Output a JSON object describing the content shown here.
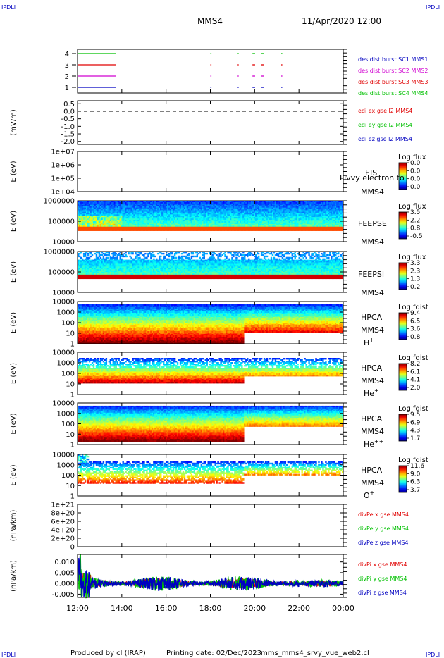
{
  "corner_label": "IPDLI",
  "header": {
    "title": "MMS4",
    "datetime": "11/Apr/2020 12:00"
  },
  "footer": {
    "produced": "Produced by cl (IRAP)",
    "printing": "Printing date: 02/Dec/2023",
    "file": "mms_mms4_srvy_vue_web2.cl"
  },
  "colors": {
    "red": "#e00000",
    "green": "#00c000",
    "blue": "#0000c0",
    "magenta": "#d000d0",
    "black": "#000000"
  },
  "chart_data": [
    {
      "type": "line",
      "id": "burst",
      "yticks": [
        "1",
        "2",
        "3",
        "4"
      ],
      "series": [
        {
          "name": "des dist burst SC1 MMS1",
          "color": "#0000c0"
        },
        {
          "name": "des dist burst SC2 MMS2",
          "color": "#d000d0"
        },
        {
          "name": "des dist burst SC3 MMS3",
          "color": "#e00000"
        },
        {
          "name": "des dist burst SC4 MMS4",
          "color": "#00c000"
        }
      ],
      "segments_hours": [
        [
          12.0,
          13.75
        ],
        [
          18.0,
          18.05
        ],
        [
          19.2,
          19.28
        ],
        [
          19.9,
          20.02
        ],
        [
          20.3,
          20.42
        ],
        [
          21.2,
          21.25
        ]
      ]
    },
    {
      "type": "line",
      "id": "edi",
      "ylabel": "(mV/m)",
      "yticks": [
        "0.5",
        "0.0",
        "-0.5",
        "-1.0",
        "-1.5",
        "-2.0"
      ],
      "ylim": [
        -2.2,
        0.7
      ],
      "series": [
        {
          "name": "edi ex gse l2 MMS4",
          "color": "#e00000"
        },
        {
          "name": "edi ey gse l2 MMS4",
          "color": "#00c000"
        },
        {
          "name": "edi ez gse l2 MMS4",
          "color": "#0000c0"
        }
      ]
    },
    {
      "type": "heatmap",
      "id": "eis",
      "ylabel": "E (eV)",
      "yticks": [
        "1e+07",
        "1e+06",
        "1e+05",
        "1e+04"
      ],
      "instrument": "EIS",
      "spacecraft": "MMS4",
      "note": "Livvy electron to",
      "colorbar_title": "Log flux",
      "colorbar_ticks": [
        "0.0",
        "0.0",
        "0.0",
        "0.0"
      ]
    },
    {
      "type": "heatmap",
      "id": "feepse",
      "ylabel": "E (eV)",
      "yticks": [
        "1000000",
        "100000",
        "10000"
      ],
      "instrument": "FEEPSE",
      "spacecraft": "MMS4",
      "colorbar_title": "Log flux",
      "colorbar_ticks": [
        "3.5",
        "2.2",
        "0.8",
        "-0.5"
      ]
    },
    {
      "type": "heatmap",
      "id": "feepsi",
      "ylabel": "E (eV)",
      "yticks": [
        "1000000",
        "100000",
        "10000"
      ],
      "instrument": "FEEPSI",
      "spacecraft": "MMS4",
      "colorbar_title": "Log flux",
      "colorbar_ticks": [
        "3.3",
        "2.3",
        "1.3",
        "0.2"
      ]
    },
    {
      "type": "heatmap",
      "id": "hpca_h",
      "ylabel": "E (eV)",
      "yticks": [
        "10000",
        "1000",
        "100",
        "10",
        "1"
      ],
      "instrument": "HPCA",
      "spacecraft": "MMS4",
      "species": "H",
      "charge": "+",
      "colorbar_title": "Log fdist",
      "colorbar_ticks": [
        "9.4",
        "6.5",
        "3.6",
        "0.8"
      ]
    },
    {
      "type": "heatmap",
      "id": "hpca_he",
      "ylabel": "E (eV)",
      "yticks": [
        "10000",
        "1000",
        "100",
        "10",
        "1"
      ],
      "instrument": "HPCA",
      "spacecraft": "MMS4",
      "species": "He",
      "charge": "+",
      "colorbar_title": "Log fdist",
      "colorbar_ticks": [
        "8.2",
        "6.1",
        "4.1",
        "2.0"
      ]
    },
    {
      "type": "heatmap",
      "id": "hpca_hepp",
      "ylabel": "E (eV)",
      "yticks": [
        "10000",
        "1000",
        "100",
        "10",
        "1"
      ],
      "instrument": "HPCA",
      "spacecraft": "MMS4",
      "species": "He",
      "charge": "++",
      "colorbar_title": "Log fdist",
      "colorbar_ticks": [
        "9.5",
        "6.9",
        "4.3",
        "1.7"
      ]
    },
    {
      "type": "heatmap",
      "id": "hpca_o",
      "ylabel": "E (eV)",
      "yticks": [
        "10000",
        "1000",
        "100",
        "10",
        "1"
      ],
      "instrument": "HPCA",
      "spacecraft": "MMS4",
      "species": "O",
      "charge": "+",
      "colorbar_title": "Log fdist",
      "colorbar_ticks": [
        "11.6",
        "9.0",
        "6.3",
        "3.7"
      ]
    },
    {
      "type": "line",
      "id": "divpe",
      "ylabel": "(nPa/km)",
      "yticks": [
        "1e+21",
        "8e+20",
        "6e+20",
        "4e+20",
        "2e+20",
        "0"
      ],
      "ylim": [
        0,
        1e+21
      ],
      "series": [
        {
          "name": "divPe x gse MMS4",
          "color": "#e00000"
        },
        {
          "name": "divPe y gse MMS4",
          "color": "#00c000"
        },
        {
          "name": "divPe z gse MMS4",
          "color": "#0000c0"
        }
      ]
    },
    {
      "type": "line",
      "id": "divpi",
      "ylabel": "(nPa/km)",
      "yticks": [
        "0.010",
        "0.005",
        "0.000",
        "-0.005"
      ],
      "ylim": [
        -0.0065,
        0.0135
      ],
      "series": [
        {
          "name": "divPi x gse MMS4",
          "color": "#e00000"
        },
        {
          "name": "divPi y gse MMS4",
          "color": "#00c000"
        },
        {
          "name": "divPi z gse MMS4",
          "color": "#0000c0"
        }
      ]
    }
  ],
  "xaxis": {
    "ticks": [
      "12:00",
      "14:00",
      "16:00",
      "18:00",
      "20:00",
      "22:00",
      "00:00"
    ],
    "range_hours": [
      12,
      24
    ]
  }
}
